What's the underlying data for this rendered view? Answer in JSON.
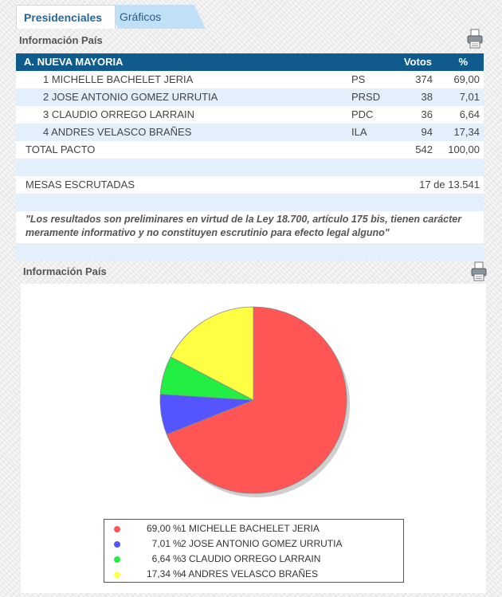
{
  "tabs": [
    {
      "label": "Presidenciales"
    },
    {
      "label": "Gráficos"
    }
  ],
  "section1_title": "Información País",
  "section2_title": "Información País",
  "table": {
    "header": {
      "pact": "A. NUEVA MAYORIA",
      "votes": "Votos",
      "pct": "%"
    },
    "rows": [
      {
        "name": "1 MICHELLE BACHELET JERIA",
        "party": "PS",
        "votes": "374",
        "pct": "69,00"
      },
      {
        "name": "2 JOSE ANTONIO GOMEZ URRUTIA",
        "party": "PRSD",
        "votes": "38",
        "pct": "7,01"
      },
      {
        "name": "3 CLAUDIO ORREGO LARRAIN",
        "party": "PDC",
        "votes": "36",
        "pct": "6,64"
      },
      {
        "name": "4 ANDRES VELASCO BRAÑES",
        "party": "ILA",
        "votes": "94",
        "pct": "17,34"
      }
    ],
    "total": {
      "label": "TOTAL PACTO",
      "votes": "542",
      "pct": "100,00"
    },
    "mesas": {
      "label": "MESAS ESCRUTADAS",
      "value": "17 de 13.541"
    }
  },
  "note": "\"Los resultados son preliminares en virtud de la Ley 18.700, artículo 175 bis, tienen carácter meramente informativo y no constituyen escrutinio para efecto legal alguno\"",
  "icons": {
    "print": "printer-icon"
  },
  "chart_data": {
    "type": "pie",
    "categories": [
      "1 MICHELLE BACHELET JERIA",
      "2 JOSE ANTONIO GOMEZ URRUTIA",
      "3 CLAUDIO ORREGO LARRAIN",
      "4 ANDRES VELASCO BRAÑES"
    ],
    "values": [
      69.0,
      7.01,
      6.64,
      17.34
    ],
    "value_labels": [
      "69,00",
      "7,01",
      "6,64",
      "17,34"
    ],
    "colors": [
      "#ff5555",
      "#5555ff",
      "#22ee44",
      "#ffff44"
    ],
    "legend_placement": "bottom",
    "unit": "%"
  }
}
